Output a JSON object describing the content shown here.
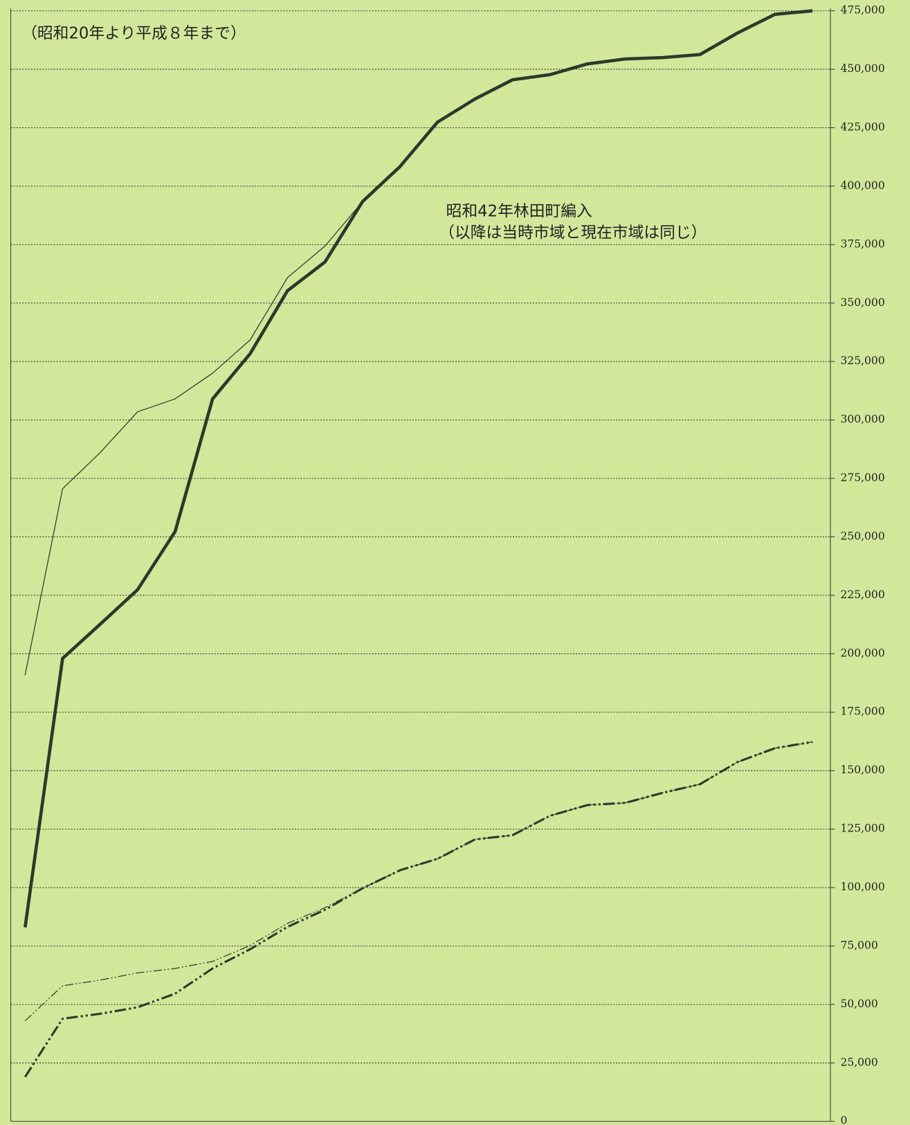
{
  "chart_data": {
    "type": "line",
    "annotations": [
      "（昭和20年より平成８年まで）",
      "昭和42年林田町編入",
      "（以降は当時市域と現在市域は同じ）"
    ],
    "categories": [
      null,
      null,
      null,
      null,
      null,
      null,
      null,
      null,
      null,
      null,
      null,
      null,
      null,
      null,
      null,
      null,
      null,
      null,
      null,
      null,
      null,
      null
    ],
    "series": [
      {
        "color": "#2a3a2a",
        "style": "solid",
        "width": 1.2,
        "values": [
          190900,
          270600,
          286000,
          303500,
          309000,
          320000,
          334200,
          360900,
          374400,
          393400,
          408400,
          427400,
          437300,
          445500,
          447700,
          452300,
          454400,
          455000,
          456300,
          465500,
          473500,
          475000
        ]
      },
      {
        "color": "#2a3a2a",
        "style": "solid",
        "width": 4.5,
        "values": [
          83000,
          198000,
          212600,
          227400,
          252200,
          309000,
          328300,
          355300,
          367600,
          393400,
          408400,
          427400,
          437300,
          445500,
          447700,
          452300,
          454400,
          455000,
          456300,
          465500,
          473500,
          475000
        ]
      },
      {
        "color": "#2a3a2a",
        "style": "dashdot",
        "width": 1.2,
        "values": [
          43000,
          58000,
          60400,
          63500,
          65400,
          68400,
          75200,
          84700,
          91400,
          99700,
          107400,
          112300,
          120600,
          122400,
          130700,
          135300,
          136200,
          140500,
          144200,
          153700,
          159600,
          162300
        ]
      },
      {
        "color": "#2a3a2a",
        "style": "dashdot",
        "width": 3,
        "values": [
          19000,
          43900,
          46000,
          48800,
          54600,
          65400,
          73600,
          83200,
          90500,
          99700,
          107400,
          112300,
          120600,
          122400,
          130700,
          135300,
          136200,
          140500,
          144200,
          153700,
          159600,
          162300
        ]
      }
    ],
    "ylim": [
      0,
      475000
    ],
    "yticks": [
      0,
      {
        "value": 25000,
        "label": "25,000"
      },
      {
        "value": 50000,
        "label": "50,000"
      },
      {
        "value": 75000,
        "label": "75,000"
      },
      {
        "value": 100000,
        "label": "100,000"
      },
      {
        "value": 125000,
        "label": "125,000"
      },
      {
        "value": 150000,
        "label": "150,000"
      },
      {
        "value": 175000,
        "label": "175,000"
      },
      {
        "value": 200000,
        "label": "200,000"
      },
      {
        "value": 225000,
        "label": "225,000"
      },
      {
        "value": 250000,
        "label": "250,000"
      },
      {
        "value": 275000,
        "label": "275,000"
      },
      {
        "value": 300000,
        "label": "300,000"
      },
      {
        "value": 325000,
        "label": "325,000"
      },
      {
        "value": 350000,
        "label": "350,000"
      },
      {
        "value": 375000,
        "label": "375,000"
      },
      {
        "value": 400000,
        "label": "400,000"
      },
      {
        "value": 425000,
        "label": "425,000"
      },
      {
        "value": 450000,
        "label": "450,000"
      },
      {
        "value": 475000,
        "label": "475,000"
      }
    ],
    "grid": true
  }
}
